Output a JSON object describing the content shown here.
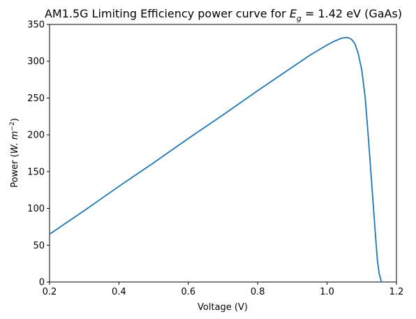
{
  "chart_data": {
    "type": "line",
    "title": {
      "prefix": "AM1.5G Limiting Efficiency power curve for ",
      "symbol": "E",
      "subscript": "g",
      "suffix": " = 1.42 eV (GaAs)"
    },
    "xlabel": "Voltage (V)",
    "ylabel": {
      "prefix": "Power (",
      "unit": "W. m",
      "exponent": "−2",
      "suffix": ")"
    },
    "xlim": [
      0.2,
      1.2
    ],
    "ylim": [
      0,
      350
    ],
    "xticks": [
      {
        "value": 0.2,
        "label": "0.2"
      },
      {
        "value": 0.4,
        "label": "0.4"
      },
      {
        "value": 0.6,
        "label": "0.6"
      },
      {
        "value": 0.8,
        "label": "0.8"
      },
      {
        "value": 1.0,
        "label": "1.0"
      },
      {
        "value": 1.2,
        "label": "1.2"
      }
    ],
    "yticks": [
      {
        "value": 0,
        "label": "0"
      },
      {
        "value": 50,
        "label": "50"
      },
      {
        "value": 100,
        "label": "100"
      },
      {
        "value": 150,
        "label": "150"
      },
      {
        "value": 200,
        "label": "200"
      },
      {
        "value": 250,
        "label": "250"
      },
      {
        "value": 300,
        "label": "300"
      },
      {
        "value": 350,
        "label": "350"
      }
    ],
    "grid": false,
    "series": [
      {
        "color": "#1f77b4",
        "x": [
          0.2,
          0.3,
          0.4,
          0.5,
          0.6,
          0.7,
          0.8,
          0.9,
          0.95,
          1.0,
          1.02,
          1.04,
          1.05,
          1.06,
          1.07,
          1.08,
          1.09,
          1.1,
          1.11,
          1.12,
          1.13,
          1.14,
          1.145,
          1.15,
          1.155,
          1.157
        ],
        "y": [
          65,
          97,
          130,
          162,
          195,
          227,
          260,
          292,
          308,
          322,
          327,
          331,
          332,
          332,
          330,
          324,
          310,
          288,
          250,
          190,
          125,
          60,
          30,
          12,
          3,
          0
        ]
      }
    ]
  }
}
